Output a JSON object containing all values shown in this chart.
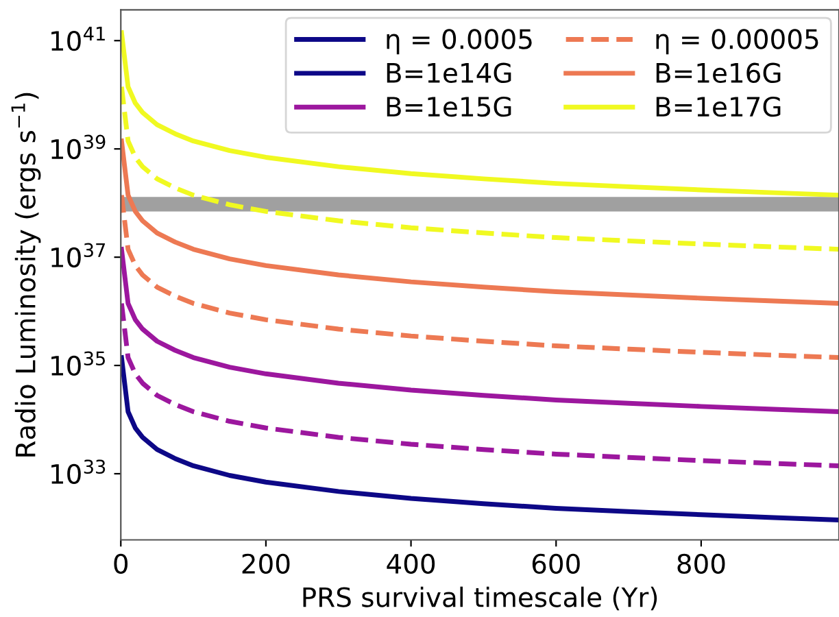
{
  "chart_data": {
    "type": "line",
    "xlabel": "PRS survival timescale (Yr)",
    "ylabel": "Radio Luminosity (ergs s$^{−1}$)",
    "x": [
      1,
      10,
      20,
      30,
      50,
      75,
      100,
      150,
      200,
      300,
      400,
      500,
      600,
      700,
      800,
      900,
      990
    ],
    "series": [
      {
        "name": "η = 0.0005",
        "color": "#0d0887",
        "line_style": "solid",
        "values": [
          null,
          null,
          null,
          null,
          null,
          null,
          null,
          null,
          null,
          null,
          null,
          null,
          null,
          null,
          null,
          null,
          null
        ]
      },
      {
        "name": "B=1e14G",
        "color": "#0d0887",
        "line_style": "solid",
        "values": [
          1.4e+35,
          1.4e+34,
          7e+33,
          4.7e+33,
          2.8e+33,
          1.9e+33,
          1.4e+33,
          9.3e+32,
          7e+32,
          4.7e+32,
          3.5e+32,
          2.8e+32,
          2.3e+32,
          2e+32,
          1.75e+32,
          1.55e+32,
          1.4e+32
        ]
      },
      {
        "name": "B=1e15G",
        "color": "#9c179e",
        "line_style": "solid",
        "values": [
          1.4e+37,
          1.4e+36,
          7e+35,
          4.7e+35,
          2.8e+35,
          1.9e+35,
          1.4e+35,
          9.3e+34,
          7e+34,
          4.7e+34,
          3.5e+34,
          2.8e+34,
          2.3e+34,
          2e+34,
          1.75e+34,
          1.55e+34,
          1.4e+34
        ]
      },
      {
        "name": "η = 0.00005",
        "color": "#ed7953",
        "line_style": "dashed",
        "values": [
          1.4e+38,
          1.4e+37,
          7e+36,
          4.7e+36,
          2.8e+36,
          1.9e+36,
          1.4e+36,
          9.3e+35,
          7e+35,
          4.7e+35,
          3.5e+35,
          2.8e+35,
          2.3e+35,
          2e+35,
          1.75e+35,
          1.55e+35,
          1.4e+35
        ]
      },
      {
        "name": "B=1e16G",
        "color": "#ed7953",
        "line_style": "solid",
        "values": [
          1.4e+39,
          1.4e+38,
          7e+37,
          4.7e+37,
          2.8e+37,
          1.9e+37,
          1.4e+37,
          9.3e+36,
          7e+36,
          4.7e+36,
          3.5e+36,
          2.8e+36,
          2.3e+36,
          2e+36,
          1.75e+36,
          1.55e+36,
          1.4e+36
        ]
      },
      {
        "name": "B=1e17G",
        "color": "#f0f921",
        "line_style": "solid",
        "values": [
          1.4e+41,
          1.4e+40,
          7e+39,
          4.7e+39,
          2.8e+39,
          1.9e+39,
          1.4e+39,
          9.3e+38,
          7e+38,
          4.7e+38,
          3.5e+38,
          2.8e+38,
          2.3e+38,
          2e+38,
          1.75e+38,
          1.55e+38,
          1.4e+38
        ]
      },
      {
        "color": "#9c179e",
        "line_style": "dashed",
        "values": [
          1.4e+36,
          1.4e+35,
          7e+34,
          4.7e+34,
          2.8e+34,
          1.9e+34,
          1.4e+34,
          9.3e+33,
          7e+33,
          4.7e+33,
          3.5e+33,
          2.8e+33,
          2.3e+33,
          2e+33,
          1.75e+33,
          1.55e+33,
          1.4e+33
        ]
      },
      {
        "color": "#f0f921",
        "line_style": "dashed",
        "values": [
          1.4e+40,
          1.4e+39,
          7e+38,
          4.7e+38,
          2.8e+38,
          1.9e+38,
          1.4e+38,
          9.3e+37,
          7e+37,
          4.7e+37,
          3.5e+37,
          2.8e+37,
          2.3e+37,
          2e+37,
          1.75e+37,
          1.55e+37,
          1.4e+37
        ]
      }
    ],
    "bands": [
      {
        "axis": "y",
        "from": 7e+37,
        "to": 1.3e+38,
        "color": "#a0a0a0"
      }
    ],
    "log": "y",
    "xlim": [
      0,
      990
    ],
    "ylim": [
      6e+31,
      3.7e+41
    ],
    "xticks": [
      0,
      200,
      400,
      600,
      800
    ],
    "yticks": [
      {
        "value": 1e+33,
        "label": "10$^{33}$"
      },
      {
        "value": 1e+35,
        "label": "10$^{35}$"
      },
      {
        "value": 1e+37,
        "label": "10$^{37}$"
      },
      {
        "value": 1e+39,
        "label": "10$^{39}$"
      },
      {
        "value": 1e+41,
        "label": "10$^{41}$"
      }
    ],
    "grid": false,
    "legend": "top right"
  }
}
